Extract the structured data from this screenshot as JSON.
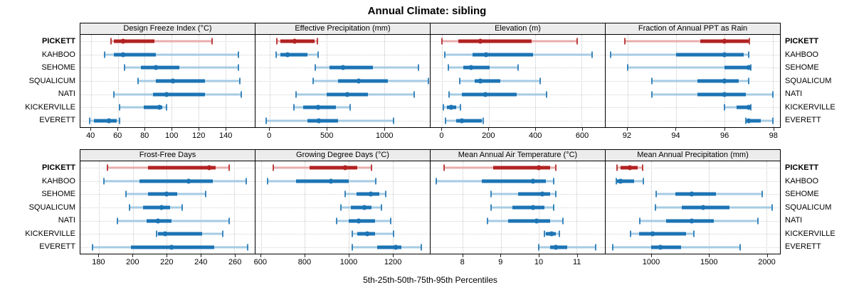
{
  "title": "Annual Climate: sibling",
  "caption": "5th-25th-50th-75th-95th Percentiles",
  "stations": [
    "PICKETT",
    "KAHBOO",
    "SEHOME",
    "SQUALICUM",
    "NATI",
    "KICKERVILLE",
    "EVERETT"
  ],
  "highlight_station": "PICKETT",
  "colors": {
    "blue": "#1C74B4",
    "blue_light": "#A6CBE3",
    "red": "#B22222",
    "red_light": "#E8ACAC",
    "strip_bg": "#ECECEC",
    "grid": "#C6C6C6",
    "frame": "#000000"
  },
  "chart_data": {
    "type": "scatter",
    "variant": "percentile-range-dotplot",
    "title": "Annual Climate: sibling",
    "xlabel": "5th-25th-50th-75th-95th Percentiles",
    "legend": "none",
    "grid": "dotted",
    "categories": [
      "PICKETT",
      "KAHBOO",
      "SEHOME",
      "SQUALICUM",
      "NATI",
      "KICKERVILLE",
      "EVERETT"
    ],
    "percentile_order": [
      "p5",
      "p25",
      "p50",
      "p75",
      "p95"
    ],
    "panels": [
      {
        "title": "Design Freeze Index (°C)",
        "row": 1,
        "domain": [
          32,
          162
        ],
        "ticks": [
          40,
          60,
          80,
          100,
          120,
          140
        ],
        "values": [
          [
            55,
            57,
            64,
            87,
            130
          ],
          [
            50,
            57,
            64,
            88,
            150
          ],
          [
            65,
            77,
            88,
            106,
            150
          ],
          [
            75,
            88,
            101,
            125,
            151
          ],
          [
            57,
            86,
            96,
            125,
            152
          ],
          [
            61,
            79,
            91,
            93,
            96
          ],
          [
            39,
            42,
            53,
            59,
            61
          ]
        ]
      },
      {
        "title": "Effective Precipitation (mm)",
        "row": 1,
        "domain": [
          -125,
          1400
        ],
        "ticks": [
          0,
          500,
          1000
        ],
        "values": [
          [
            60,
            95,
            215,
            390,
            415
          ],
          [
            55,
            90,
            155,
            330,
            420
          ],
          [
            400,
            520,
            640,
            900,
            1300
          ],
          [
            380,
            600,
            780,
            1030,
            1390
          ],
          [
            230,
            500,
            680,
            860,
            1260
          ],
          [
            210,
            290,
            420,
            580,
            700
          ],
          [
            -30,
            330,
            430,
            600,
            1080
          ]
        ]
      },
      {
        "title": "Elevation (m)",
        "row": 1,
        "domain": [
          -50,
          700
        ],
        "ticks": [
          0,
          200,
          400,
          600
        ],
        "values": [
          [
            0,
            70,
            165,
            385,
            580
          ],
          [
            10,
            130,
            190,
            390,
            645
          ],
          [
            25,
            90,
            125,
            205,
            325
          ],
          [
            75,
            140,
            165,
            250,
            420
          ],
          [
            30,
            85,
            185,
            320,
            450
          ],
          [
            5,
            20,
            38,
            60,
            80
          ],
          [
            15,
            60,
            85,
            170,
            175
          ]
        ]
      },
      {
        "title": "Fraction of Annual PPT as Rain",
        "row": 1,
        "domain": [
          91.1,
          98.3
        ],
        "ticks": [
          92,
          94,
          96,
          98
        ],
        "values": [
          [
            91.9,
            95.0,
            96.0,
            97.0,
            97.05
          ],
          [
            91.3,
            94.0,
            96.0,
            96.8,
            97.0
          ],
          [
            92.0,
            96.0,
            97.0,
            97.05,
            97.1
          ],
          [
            93.0,
            94.9,
            96.0,
            96.6,
            97.0
          ],
          [
            93.0,
            94.9,
            96.0,
            96.9,
            98.0
          ],
          [
            96.0,
            96.5,
            97.0,
            97.05,
            97.1
          ],
          [
            96.9,
            96.95,
            97.0,
            97.5,
            98.0
          ]
        ]
      },
      {
        "title": "Frost-Free Days",
        "row": 2,
        "domain": [
          169,
          272
        ],
        "ticks": [
          180,
          200,
          220,
          240,
          260
        ],
        "values": [
          [
            185,
            209,
            245,
            249,
            257
          ],
          [
            183,
            204,
            233,
            247,
            267
          ],
          [
            196,
            209,
            220,
            226,
            243
          ],
          [
            198,
            206,
            217,
            222,
            229
          ],
          [
            191,
            208,
            215,
            223,
            257
          ],
          [
            214,
            215,
            219,
            241,
            253
          ],
          [
            176,
            199,
            223,
            248,
            268
          ]
        ]
      },
      {
        "title": "Growing Degree Days (°C)",
        "row": 2,
        "domain": [
          575,
          1370
        ],
        "ticks": [
          600,
          800,
          1000,
          1200
        ],
        "values": [
          [
            655,
            820,
            985,
            1040,
            1105
          ],
          [
            630,
            760,
            920,
            1000,
            1125
          ],
          [
            985,
            1035,
            1100,
            1140,
            1170
          ],
          [
            965,
            1010,
            1070,
            1105,
            1150
          ],
          [
            945,
            1000,
            1045,
            1120,
            1190
          ],
          [
            1015,
            1040,
            1085,
            1120,
            1205
          ],
          [
            1015,
            1130,
            1215,
            1240,
            1330
          ]
        ]
      },
      {
        "title": "Mean Annual Air Temperature (°C)",
        "row": 2,
        "domain": [
          7.15,
          11.75
        ],
        "ticks": [
          8,
          9,
          10,
          11
        ],
        "values": [
          [
            7.5,
            8.8,
            10.0,
            10.3,
            10.45
          ],
          [
            7.3,
            8.5,
            9.85,
            10.2,
            10.4
          ],
          [
            8.75,
            9.45,
            10.1,
            10.3,
            10.45
          ],
          [
            8.75,
            9.3,
            9.85,
            10.15,
            10.4
          ],
          [
            8.65,
            9.2,
            9.95,
            10.3,
            10.65
          ],
          [
            10.15,
            10.2,
            10.35,
            10.45,
            10.55
          ],
          [
            10.0,
            10.3,
            10.45,
            10.75,
            11.5
          ]
        ]
      },
      {
        "title": "Mean Annual Precipitation (mm)",
        "row": 2,
        "domain": [
          600,
          2120
        ],
        "ticks": [
          1000,
          1500,
          2000
        ],
        "values": [
          [
            700,
            730,
            810,
            880,
            925
          ],
          [
            690,
            700,
            730,
            850,
            930
          ],
          [
            1040,
            1210,
            1350,
            1560,
            1965
          ],
          [
            1035,
            1265,
            1450,
            1680,
            2050
          ],
          [
            900,
            1130,
            1350,
            1540,
            1925
          ],
          [
            820,
            890,
            1010,
            1300,
            1370
          ],
          [
            660,
            1000,
            1075,
            1260,
            1770
          ]
        ]
      }
    ]
  }
}
